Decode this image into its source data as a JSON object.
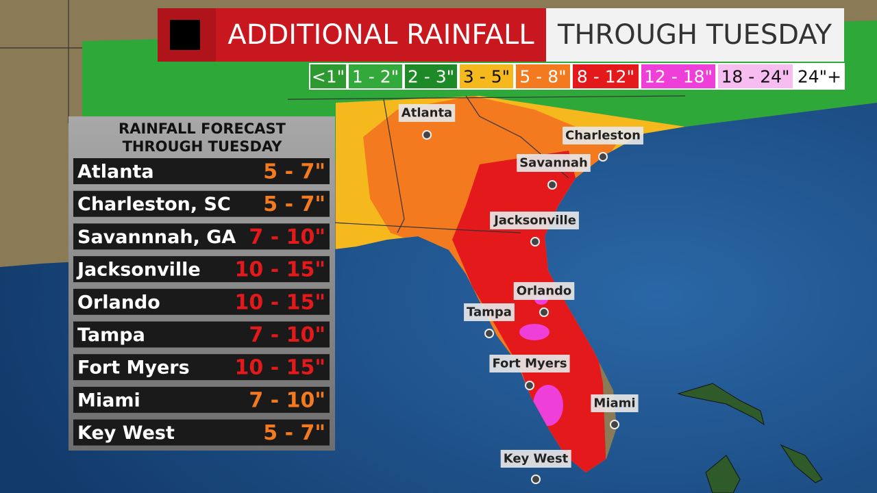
{
  "header": {
    "title": "ADDITIONAL RAINFALL",
    "subtitle": "THROUGH TUESDAY"
  },
  "legend": [
    {
      "label": "<1\"",
      "color": "#2c9a2f"
    },
    {
      "label": "1 - 2\"",
      "color": "#33a93b"
    },
    {
      "label": "2 - 3\"",
      "color": "#1e8a27"
    },
    {
      "label": "3 - 5\"",
      "color": "#f6b91d"
    },
    {
      "label": "5 - 8\"",
      "color": "#f47a20"
    },
    {
      "label": "8 - 12\"",
      "color": "#e3191c"
    },
    {
      "label": "12 - 18\"",
      "color": "#ee3fd8"
    },
    {
      "label": "18 - 24\"",
      "color": "#f7bdf0"
    },
    {
      "label": "24\"+",
      "color": "#ffffff"
    }
  ],
  "table": {
    "title": [
      "RAINFALL FORECAST",
      "THROUGH TUESDAY"
    ],
    "rows": [
      {
        "city": "Atlanta",
        "range": "5 - 7\"",
        "color": "#f47a20"
      },
      {
        "city": "Charleston, SC",
        "range": "5 - 7\"",
        "color": "#f47a20"
      },
      {
        "city": "Savannnah, GA",
        "range": "7 - 10\"",
        "color": "#e3191c"
      },
      {
        "city": "Jacksonville",
        "range": "10 - 15\"",
        "color": "#e3191c"
      },
      {
        "city": "Orlando",
        "range": "10 - 15\"",
        "color": "#e3191c"
      },
      {
        "city": "Tampa",
        "range": "7 - 10\"",
        "color": "#e3191c"
      },
      {
        "city": "Fort Myers",
        "range": "10 - 15\"",
        "color": "#e3191c"
      },
      {
        "city": "Miami",
        "range": "7 - 10\"",
        "color": "#f47a20"
      },
      {
        "city": "Key West",
        "range": "5 - 7\"",
        "color": "#f47a20"
      }
    ]
  },
  "map_labels": [
    "Atlanta",
    "Charleston",
    "Savannah",
    "Jacksonville",
    "Orlando",
    "Tampa",
    "Fort Myers",
    "Miami",
    "Key West"
  ]
}
